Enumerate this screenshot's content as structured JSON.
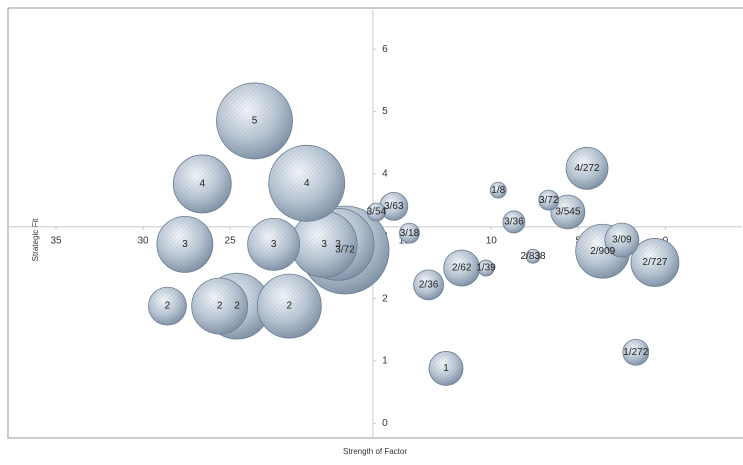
{
  "chart_data": {
    "type": "bubble",
    "x_label": "Strength of Factor",
    "y_label": "Strategic Fit",
    "xlim": [
      37.7,
      -4.4
    ],
    "ylim": [
      -0.22,
      6.63
    ],
    "xticks": [
      35,
      30,
      25,
      20,
      15,
      10,
      5,
      0
    ],
    "yticks": [
      0,
      1,
      2,
      3,
      4,
      5,
      6
    ],
    "x_axis_at_y": 3.15,
    "y_axis_at_x": 16.8,
    "color": "#b9c6d4",
    "labels": [
      "3/72",
      "5",
      "4",
      "3",
      "3",
      "4",
      "3",
      "2",
      "2",
      "2",
      "3",
      "2/909",
      "2",
      "2/727",
      "4/272",
      "2/62",
      "3/545",
      "3/09",
      "1",
      "2/36",
      "3/63",
      "1/272",
      "3/36",
      "3/18",
      "3/72",
      "3/54",
      "1/39",
      "1/8",
      "2/838"
    ],
    "x": [
      18.4,
      23.6,
      26.6,
      18.8,
      19.6,
      20.6,
      27.6,
      24.6,
      25.6,
      21.6,
      22.5,
      3.6,
      28.6,
      0.6,
      4.5,
      11.7,
      5.6,
      2.5,
      12.6,
      13.6,
      15.6,
      1.7,
      8.7,
      14.7,
      6.7,
      16.6,
      10.3,
      9.6,
      7.6
    ],
    "y": [
      2.78,
      4.85,
      3.84,
      2.87,
      2.87,
      3.85,
      2.87,
      1.88,
      1.88,
      1.88,
      2.87,
      2.76,
      1.88,
      2.58,
      4.09,
      2.49,
      3.39,
      2.94,
      0.88,
      2.22,
      3.48,
      1.14,
      3.23,
      3.05,
      3.58,
      3.39,
      2.49,
      3.74,
      2.68
    ],
    "sizes": [
      44,
      38,
      29,
      36,
      33,
      38,
      28,
      33,
      28,
      32,
      26,
      27,
      19,
      24,
      21,
      18,
      17,
      17,
      17,
      15,
      14,
      13,
      11,
      10,
      10,
      9,
      8,
      8,
      7
    ]
  }
}
